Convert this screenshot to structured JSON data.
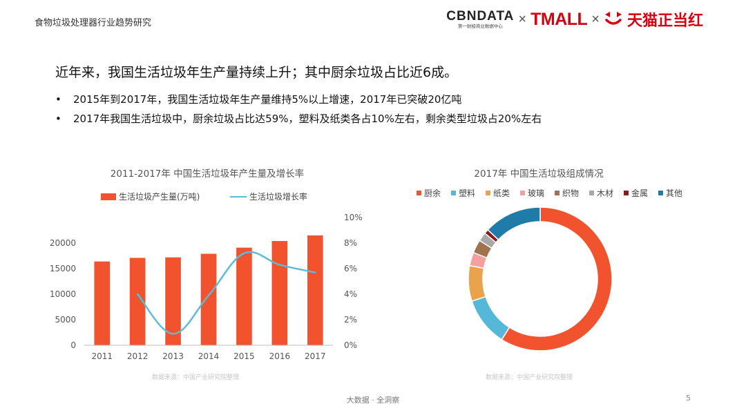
{
  "header": {
    "title": "食物垃圾处理器行业趋势研究"
  },
  "logos": {
    "cbndata_main": "CBNDATA",
    "cbndata_sub": "第一财经商业数据中心",
    "cross": "×",
    "tmall": "TMALL",
    "tianmao": "天猫正当红"
  },
  "headline": "近年来，我国生活垃圾年生产量持续上升；其中厨余垃圾占比近6成。",
  "bullets": [
    "2015年到2017年，我国生活垃圾年生产量维持5%以上增速，2017年已突破20亿吨",
    "2017年我国生活垃圾中，厨余垃圾占比达59%，塑料及纸类各占10%左右，剩余类型垃圾占20%左右"
  ],
  "chart_data": [
    {
      "type": "bar",
      "title": "2011-2017年 中国生活垃圾年产生量及增长率",
      "categories": [
        "2011",
        "2012",
        "2013",
        "2014",
        "2015",
        "2016",
        "2017"
      ],
      "series": [
        {
          "name": "生活垃圾产生量(万吨)",
          "kind": "bar",
          "axis": "left",
          "color": "#f0532d",
          "values": [
            16400,
            17100,
            17200,
            17900,
            19100,
            20400,
            21500
          ]
        },
        {
          "name": "生活垃圾增长率",
          "kind": "line",
          "axis": "right",
          "color": "#5bbcd6",
          "x": [
            "2012",
            "2013",
            "2014",
            "2015",
            "2016",
            "2017"
          ],
          "values": [
            4.0,
            0.9,
            3.9,
            7.2,
            6.3,
            5.7
          ]
        }
      ],
      "y_left": {
        "ylim": [
          0,
          25000
        ],
        "ticks": [
          "0",
          "5000",
          "10000",
          "15000",
          "20000"
        ],
        "tick_values": [
          0,
          5000,
          10000,
          15000,
          20000
        ]
      },
      "y_right": {
        "ylim": [
          0,
          10
        ],
        "ticks": [
          "0%",
          "2%",
          "4%",
          "6%",
          "8%",
          "10%"
        ],
        "tick_values": [
          0,
          2,
          4,
          6,
          8,
          10
        ]
      },
      "grid": false,
      "legend": "top",
      "source_note": "数据来源：中国产业研究院整理"
    },
    {
      "type": "pie",
      "donut": true,
      "title": "2017年 中国生活垃圾组成情况",
      "labels": [
        "厨余",
        "塑料",
        "纸类",
        "玻璃",
        "织物",
        "木材",
        "金属",
        "其他"
      ],
      "values": [
        59,
        11,
        8,
        3,
        3,
        2,
        1,
        13
      ],
      "colors": [
        "#f0532d",
        "#56b8d8",
        "#e9a34a",
        "#f4a0a0",
        "#a0724e",
        "#a8a8a8",
        "#8b1a1a",
        "#1f7ba8"
      ],
      "legend": "top",
      "source_note": "数据来源：中国产业研究院整理"
    }
  ],
  "footer": {
    "text": "大数据 · 全洞察",
    "page": "5"
  }
}
